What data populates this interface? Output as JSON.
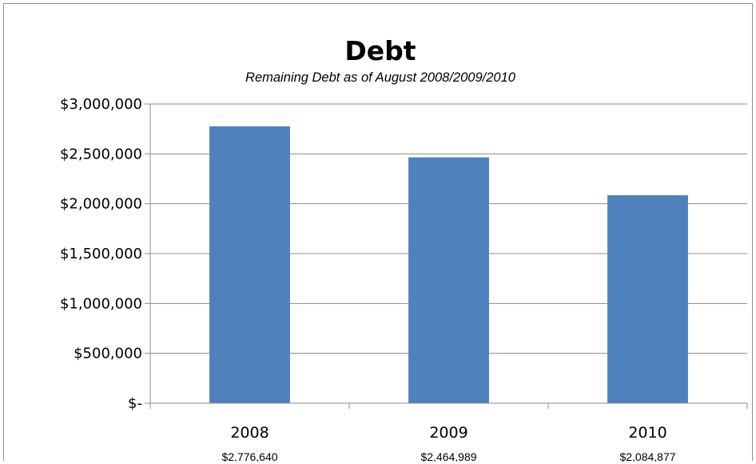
{
  "chart_data": {
    "type": "bar",
    "title": "Debt",
    "subtitle": "Remaining Debt as of August 2008/2009/2010",
    "categories": [
      "2008",
      "2009",
      "2010"
    ],
    "values": [
      2776640,
      2464989,
      2084877
    ],
    "value_labels": [
      "$2,776,640",
      "$2,464,989",
      "$2,084,877"
    ],
    "ylim": [
      0,
      3000000
    ],
    "yticks": [
      0,
      500000,
      1000000,
      1500000,
      2000000,
      2500000,
      3000000
    ],
    "ytick_labels": [
      "$-",
      "$500,000",
      "$1,000,000",
      "$1,500,000",
      "$2,000,000",
      "$2,500,000",
      "$3,000,000"
    ],
    "bar_color": "#4f81bd",
    "grid": true,
    "legend": "none"
  }
}
